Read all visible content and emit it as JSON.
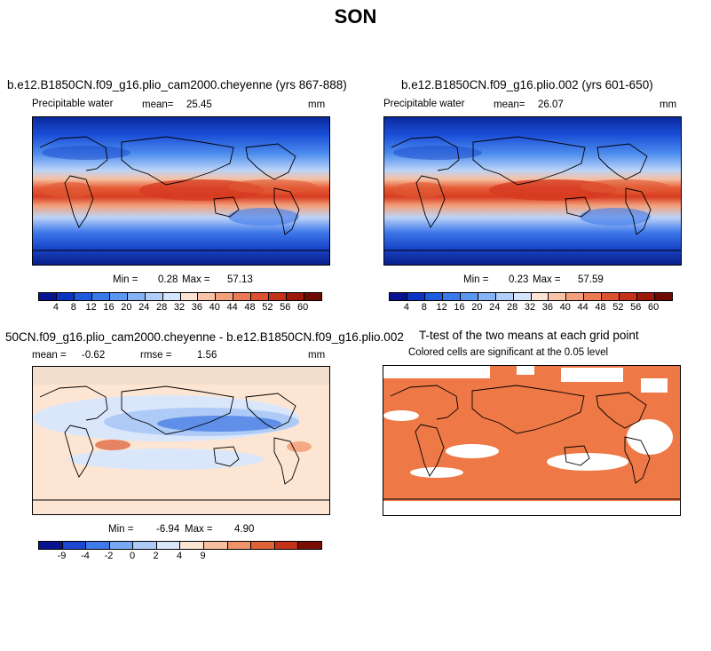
{
  "title": "SON",
  "panels": {
    "top_left": {
      "title": "b.e12.B1850CN.f09_g16.plio_cam2000.cheyenne (yrs 867-888)",
      "variable": "Precipitable water",
      "mean_label": "mean=",
      "mean": "25.45",
      "units": "mm",
      "min_label": "Min =",
      "min": "0.28",
      "max_label": "Max =",
      "max": "57.13"
    },
    "top_right": {
      "title": "b.e12.B1850CN.f09_g16.plio.002 (yrs 601-650)",
      "variable": "Precipitable water",
      "mean_label": "mean=",
      "mean": "26.07",
      "units": "mm",
      "min_label": "Min =",
      "min": "0.23",
      "max_label": "Max =",
      "max": "57.59"
    },
    "bottom_left": {
      "title": "50CN.f09_g16.plio_cam2000.cheyenne - b.e12.B1850CN.f09_g16.plio.002",
      "mean_label": "mean =",
      "mean": "-0.62",
      "rmse_label": "rmse =",
      "rmse": "1.56",
      "units": "mm",
      "min_label": "Min =",
      "min": "-6.94",
      "max_label": "Max =",
      "max": "4.90"
    },
    "bottom_right": {
      "title": "T-test of the two means at each grid point",
      "subtitle": "Colored cells are significant at the 0.05 level"
    }
  },
  "colorbars": {
    "absolute": {
      "labels": [
        "4",
        "8",
        "12",
        "16",
        "20",
        "24",
        "28",
        "32",
        "36",
        "40",
        "44",
        "48",
        "52",
        "56",
        "60"
      ],
      "colors": [
        "#08138f",
        "#0c34c3",
        "#1e5ae0",
        "#3a79ea",
        "#5b96f0",
        "#85b3f4",
        "#b0cef8",
        "#d6e5fb",
        "#fbe4d6",
        "#f8c4a8",
        "#f3a07c",
        "#ec7a54",
        "#dd5330",
        "#c4321a",
        "#9c1a0c",
        "#6b0b04"
      ]
    },
    "difference": {
      "labels": [
        "-9",
        "-4",
        "-2",
        "0",
        "2",
        "4",
        "9"
      ],
      "colors": [
        "#08138f",
        "#1e48d2",
        "#3f79ea",
        "#7aa9f3",
        "#aecbf7",
        "#dae7fb",
        "#fde5d3",
        "#f8c09e",
        "#ef9468",
        "#df6238",
        "#c4321a",
        "#7a0d04"
      ]
    }
  },
  "colors": {
    "significance": "#ee7846",
    "ocean_blue_dark": "#0c2aa8",
    "tropical_red": "#e0482a",
    "diff_background": "#fde5d3"
  },
  "chart_data": [
    {
      "type": "heatmap",
      "title": "b.e12.B1850CN.f09_g16.plio_cam2000.cheyenne (yrs 867-888)",
      "variable": "Precipitable water",
      "units": "mm",
      "mean": 25.45,
      "min": 0.28,
      "max": 57.13,
      "color_levels": [
        4,
        8,
        12,
        16,
        20,
        24,
        28,
        32,
        36,
        40,
        44,
        48,
        52,
        56,
        60
      ]
    },
    {
      "type": "heatmap",
      "title": "b.e12.B1850CN.f09_g16.plio.002 (yrs 601-650)",
      "variable": "Precipitable water",
      "units": "mm",
      "mean": 26.07,
      "min": 0.23,
      "max": 57.59,
      "color_levels": [
        4,
        8,
        12,
        16,
        20,
        24,
        28,
        32,
        36,
        40,
        44,
        48,
        52,
        56,
        60
      ]
    },
    {
      "type": "heatmap",
      "title": "50CN.f09_g16.plio_cam2000.cheyenne - b.e12.B1850CN.f09_g16.plio.002",
      "units": "mm",
      "mean": -0.62,
      "rmse": 1.56,
      "min": -6.94,
      "max": 4.9,
      "color_levels": [
        -9,
        -4,
        -2,
        0,
        2,
        4,
        9
      ]
    },
    {
      "type": "heatmap",
      "title": "T-test of the two means at each grid point",
      "subtitle": "Colored cells are significant at the 0.05 level",
      "significance_level": 0.05
    }
  ]
}
